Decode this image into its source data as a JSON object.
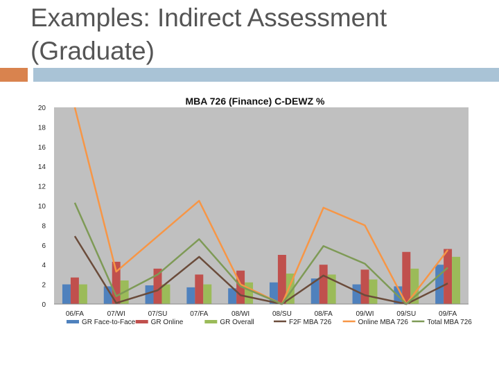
{
  "slide": {
    "title_line1": "Examples: Indirect Assessment",
    "title_line2": "(Graduate)",
    "accent_color": "#D9834E",
    "bar_color": "#A9C3D6"
  },
  "chart_data": {
    "type": "bar+line",
    "title": "MBA 726 (Finance) C-DEWZ %",
    "xlabel": "",
    "ylabel": "",
    "ylim": [
      0,
      20
    ],
    "yticks": [
      0,
      2,
      4,
      6,
      8,
      10,
      12,
      14,
      16,
      18,
      20
    ],
    "grid": false,
    "legend_position": "bottom",
    "plot_background": "#C0C0C0",
    "categories": [
      "06/FA",
      "07/WI",
      "07/SU",
      "07/FA",
      "08/WI",
      "08/SU",
      "08/FA",
      "09/WI",
      "09/SU",
      "09/FA"
    ],
    "bar_series": [
      {
        "name": "GR Face-to-Face",
        "color": "#4F81BD",
        "values": [
          2.0,
          1.8,
          1.9,
          1.7,
          1.6,
          2.2,
          2.6,
          2.0,
          1.8,
          4.0
        ]
      },
      {
        "name": "GR Online",
        "color": "#C0504D",
        "values": [
          2.7,
          4.3,
          3.6,
          3.0,
          3.4,
          5.0,
          4.0,
          3.5,
          5.3,
          5.6
        ]
      },
      {
        "name": "GR Overall",
        "color": "#9BBB59",
        "values": [
          2.0,
          2.4,
          2.0,
          2.0,
          2.2,
          3.1,
          3.0,
          2.5,
          3.6,
          4.8
        ]
      }
    ],
    "line_series": [
      {
        "name": "F2F MBA 726",
        "color": "#6B4C3B",
        "values": [
          6.9,
          0.1,
          1.4,
          4.8,
          0.9,
          0.0,
          2.9,
          0.9,
          0.0,
          2.1
        ]
      },
      {
        "name": "Online MBA 726",
        "color": "#F79646",
        "values": [
          20.0,
          3.3,
          6.9,
          10.5,
          2.0,
          0.0,
          9.8,
          8.0,
          0.0,
          5.5
        ]
      },
      {
        "name": "Total MBA 726",
        "color": "#7E9A56",
        "values": [
          10.3,
          0.8,
          3.0,
          6.6,
          1.8,
          0.0,
          5.9,
          4.1,
          0.0,
          3.7
        ]
      }
    ]
  }
}
